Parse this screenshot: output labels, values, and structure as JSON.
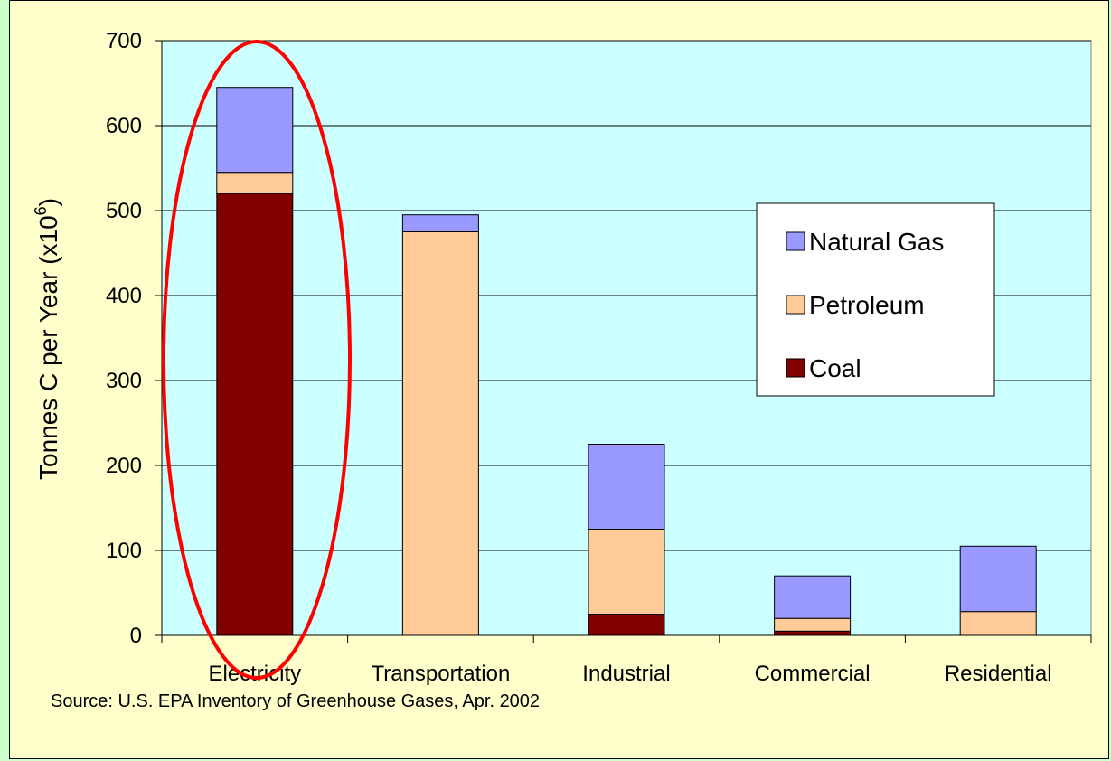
{
  "chart_data": {
    "type": "bar",
    "stacked": true,
    "title": "",
    "xlabel": "",
    "ylabel": "Tonnes C per Year (x10",
    "ylabel_superscript": "6",
    "ylabel_suffix": ")",
    "categories": [
      "Electricity",
      "Transportation",
      "Industrial",
      "Commercial",
      "Residential"
    ],
    "series": [
      {
        "name": "Coal",
        "values": [
          520,
          0,
          25,
          5,
          0
        ]
      },
      {
        "name": "Petroleum",
        "values": [
          25,
          475,
          100,
          15,
          28
        ]
      },
      {
        "name": "Natural Gas",
        "values": [
          100,
          20,
          100,
          50,
          77
        ]
      }
    ],
    "ylim": [
      0,
      700
    ],
    "yticks": [
      "0",
      "100",
      "200",
      "300",
      "400",
      "500",
      "600",
      "700"
    ],
    "grid": true,
    "legend_placement": "right",
    "legend_order": [
      "Natural Gas",
      "Petroleum",
      "Coal"
    ],
    "highlight": "Electricity",
    "source": "Source: U.S. EPA Inventory of Greenhouse Gases, Apr. 2002",
    "colors": {
      "Coal": "#800000",
      "Petroleum": "#ffcc99",
      "Natural Gas": "#9999ff",
      "plot_background": "#ccffff",
      "page_background": "#ffffcc",
      "highlight_ellipse": "#ff0000"
    }
  }
}
